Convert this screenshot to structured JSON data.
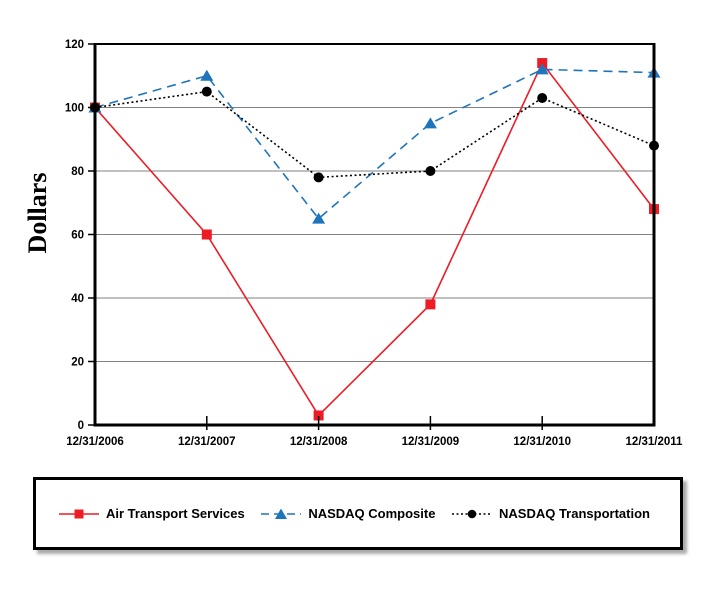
{
  "chart_data": {
    "type": "line",
    "title": "",
    "xlabel": "",
    "ylabel": "Dollars",
    "x_labels": [
      "12/31/2006",
      "12/31/2007",
      "12/31/2008",
      "12/31/2009",
      "12/31/2010",
      "12/31/2011"
    ],
    "ylim": [
      0,
      120
    ],
    "y_ticks": [
      0,
      20,
      40,
      60,
      80,
      100,
      120
    ],
    "grid": "horizontal-only",
    "gridline_color": "#828282",
    "axis_color": "#000000",
    "legend_position": "bottom-box",
    "series": [
      {
        "name": "Air Transport Services",
        "color": "#EE1C25",
        "marker": "square",
        "line_style": "solid",
        "values": [
          100,
          60,
          3,
          38,
          114,
          68
        ]
      },
      {
        "name": "NASDAQ Composite",
        "color": "#1F75BB",
        "marker": "triangle",
        "line_style": "dashed",
        "values": [
          100,
          110,
          65,
          95,
          112,
          111
        ]
      },
      {
        "name": "NASDAQ Transportation",
        "color": "#000000",
        "marker": "circle",
        "line_style": "dotted",
        "values": [
          100,
          105,
          78,
          80,
          103,
          88
        ]
      }
    ]
  }
}
